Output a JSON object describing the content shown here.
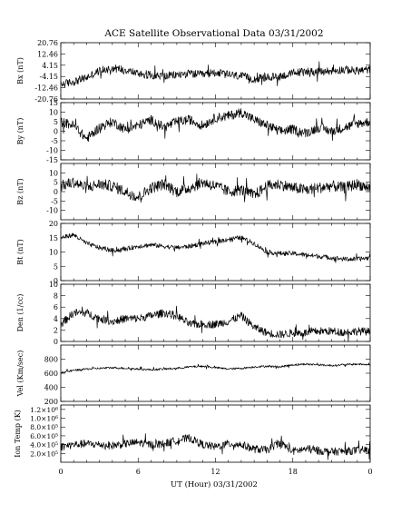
{
  "title": "ACE Satellite Observational Data   03/31/2002",
  "x_axis": {
    "label": "UT (Hour)   03/31/2002",
    "tick_labels": [
      "0",
      "6",
      "12",
      "18",
      "0"
    ]
  },
  "chart_data": {
    "type": "line",
    "title": "ACE Satellite Observational Data   03/31/2002",
    "xlabel": "UT (Hour)   03/31/2002",
    "xlim": [
      0,
      24
    ],
    "x_tick_labels": [
      "0",
      "6",
      "12",
      "18",
      "0"
    ],
    "grid": false,
    "panels": [
      {
        "ylabel": "Bx (nT)",
        "ylim": [
          -20.76,
          20.76
        ],
        "y_ticks": [
          20.76,
          12.46,
          4.15,
          -4.15,
          -12.46,
          -20.76
        ],
        "y_tick_labels": [
          "20.76",
          "12.46",
          "4.15",
          "-4.15",
          "-12.46",
          "-20.76"
        ],
        "x": [
          0,
          1,
          2,
          3,
          4,
          5,
          6,
          7,
          8,
          9,
          10,
          11,
          12,
          13,
          14,
          15,
          16,
          17,
          18,
          19,
          20,
          21,
          22,
          23,
          24
        ],
        "values": [
          -10,
          -8,
          -5,
          0,
          2,
          1,
          -2,
          -3,
          -4,
          -3,
          -2,
          -3,
          -1,
          -3,
          -4,
          -6,
          -5,
          -4,
          -2,
          0,
          -1,
          0,
          1,
          0,
          1
        ],
        "noise": 3
      },
      {
        "ylabel": "By (nT)",
        "ylim": [
          -15,
          15
        ],
        "y_ticks": [
          15,
          10,
          5,
          0,
          -5,
          -10,
          -15
        ],
        "y_tick_labels": [
          "15",
          "10",
          "5",
          "0",
          "-5",
          "-10",
          "-15"
        ],
        "x": [
          0,
          1,
          2,
          3,
          4,
          5,
          6,
          7,
          8,
          9,
          10,
          11,
          12,
          13,
          14,
          15,
          16,
          17,
          18,
          19,
          20,
          21,
          22,
          23,
          24
        ],
        "values": [
          5,
          3,
          -4,
          2,
          5,
          1,
          3,
          6,
          2,
          5,
          6,
          3,
          7,
          8,
          10,
          6,
          3,
          0,
          1,
          -1,
          2,
          0,
          2,
          4,
          5
        ],
        "noise": 2.5
      },
      {
        "ylabel": "Bz (nT)",
        "ylim": [
          -15,
          15
        ],
        "y_ticks": [
          10,
          5,
          0,
          -5,
          -10
        ],
        "y_tick_labels": [
          "10",
          "5",
          "0",
          "-5",
          "-10"
        ],
        "x": [
          0,
          1,
          2,
          3,
          4,
          5,
          6,
          7,
          8,
          9,
          10,
          11,
          12,
          13,
          14,
          15,
          16,
          17,
          18,
          19,
          20,
          21,
          22,
          23,
          24
        ],
        "values": [
          3,
          5,
          2,
          4,
          3,
          0,
          -3,
          2,
          4,
          0,
          2,
          5,
          3,
          0,
          1,
          -2,
          3,
          4,
          2,
          1,
          2,
          3,
          2,
          4,
          2
        ],
        "noise": 3
      },
      {
        "ylabel": "Bt (nT)",
        "ylim": [
          0,
          20
        ],
        "y_ticks": [
          20,
          15,
          10,
          5,
          0
        ],
        "y_tick_labels": [
          "20",
          "15",
          "10",
          "5",
          "0"
        ],
        "x": [
          0,
          1,
          2,
          3,
          4,
          5,
          6,
          7,
          8,
          9,
          10,
          11,
          12,
          13,
          14,
          15,
          16,
          17,
          18,
          19,
          20,
          21,
          22,
          23,
          24
        ],
        "values": [
          15,
          16,
          13,
          11.5,
          10.5,
          11,
          12,
          12.5,
          12,
          11.5,
          12,
          13,
          13.5,
          14.5,
          15,
          13,
          10,
          9.5,
          9.5,
          9,
          8.5,
          8,
          7.5,
          7.5,
          8
        ],
        "noise": 0.8
      },
      {
        "ylabel": "Den (1/cc)",
        "ylim": [
          0,
          10
        ],
        "y_ticks": [
          10,
          8,
          6,
          4,
          2,
          0
        ],
        "y_tick_labels": [
          "10",
          "8",
          "6",
          "4",
          "2",
          "0"
        ],
        "x": [
          0,
          1,
          2,
          3,
          4,
          5,
          6,
          7,
          8,
          9,
          10,
          11,
          12,
          13,
          14,
          15,
          16,
          17,
          18,
          19,
          20,
          21,
          22,
          23,
          24
        ],
        "values": [
          3,
          5,
          5,
          4,
          3.5,
          4,
          4,
          4.5,
          5,
          4.5,
          3,
          3,
          3,
          3.5,
          4.5,
          2.5,
          1.5,
          1.2,
          1.5,
          1.5,
          1.8,
          1.8,
          1.6,
          1.8,
          1.7
        ],
        "noise": 0.7
      },
      {
        "ylabel": "Vel (Km/sec)",
        "ylim": [
          200,
          1000
        ],
        "y_ticks": [
          800,
          600,
          400,
          200
        ],
        "y_tick_labels": [
          "800",
          "600",
          "400",
          "200"
        ],
        "x": [
          0,
          1,
          2,
          3,
          4,
          5,
          6,
          7,
          8,
          9,
          10,
          11,
          12,
          13,
          14,
          15,
          16,
          17,
          18,
          19,
          20,
          21,
          22,
          23,
          24
        ],
        "values": [
          610,
          640,
          660,
          670,
          680,
          670,
          660,
          650,
          660,
          670,
          690,
          700,
          680,
          660,
          670,
          690,
          700,
          690,
          720,
          730,
          720,
          710,
          720,
          730,
          720
        ],
        "noise": 14
      },
      {
        "ylabel": "Ion Temp (K)",
        "ylim": [
          0,
          1300000
        ],
        "y_ticks": [
          1200000,
          1000000,
          800000,
          600000,
          400000,
          200000
        ],
        "y_tick_labels": [
          "1.2×10⁶",
          "1.0×10⁶",
          "8.0×10⁵",
          "6.0×10⁵",
          "4.0×10⁵",
          "2.0×10⁵"
        ],
        "x": [
          0,
          1,
          2,
          3,
          4,
          5,
          6,
          7,
          8,
          9,
          10,
          11,
          12,
          13,
          14,
          15,
          16,
          17,
          18,
          19,
          20,
          21,
          22,
          23,
          24
        ],
        "values": [
          350000,
          400000,
          420000,
          400000,
          380000,
          420000,
          450000,
          400000,
          420000,
          500000,
          550000,
          400000,
          350000,
          420000,
          400000,
          300000,
          280000,
          450000,
          250000,
          300000,
          260000,
          240000,
          250000,
          270000,
          280000
        ],
        "noise": 90000
      }
    ]
  }
}
